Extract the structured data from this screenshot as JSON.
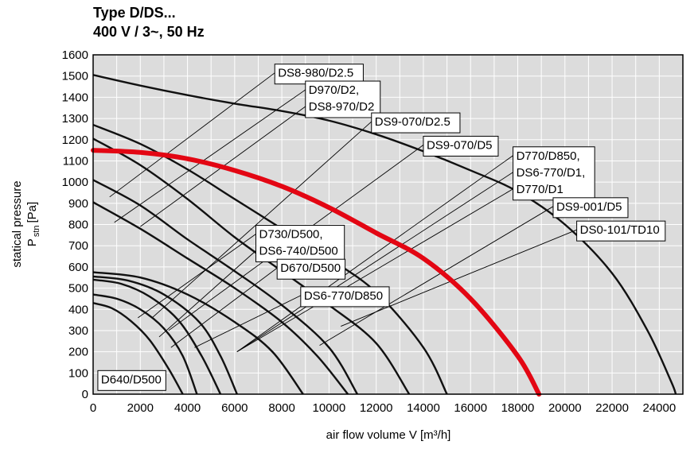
{
  "chart_data": {
    "type": "line",
    "title": "Type D/DS...",
    "subtitle": "400 V / 3~, 50 Hz",
    "xlabel": "air flow volume V [m³/h]",
    "ylabel": "statical pressure",
    "ylabel_symbol": "P",
    "ylabel_subscript": "stn",
    "ylabel_unit": "[Pa]",
    "xlim": [
      0,
      25000
    ],
    "ylim": [
      0,
      1600
    ],
    "x_ticks": [
      "0",
      "2000",
      "4000",
      "6000",
      "8000",
      "10000",
      "12000",
      "14000",
      "16000",
      "18000",
      "20000",
      "22000",
      "24000"
    ],
    "y_ticks": [
      "0",
      "100",
      "200",
      "300",
      "400",
      "500",
      "600",
      "700",
      "800",
      "900",
      "1000",
      "1100",
      "1200",
      "1300",
      "1400",
      "1500",
      "1600"
    ],
    "grid": true,
    "colors": {
      "highlight": "#e30613",
      "curve": "#111111",
      "plot_bg": "#dcdcdc",
      "grid": "#ffffff"
    },
    "series": [
      {
        "name": "D640/D500",
        "points": [
          [
            0,
            430
          ],
          [
            800,
            405
          ],
          [
            1600,
            345
          ],
          [
            2400,
            255
          ],
          [
            3200,
            120
          ],
          [
            3800,
            0
          ]
        ]
      },
      {
        "name": "DS6-770/D850",
        "points": [
          [
            0,
            470
          ],
          [
            1000,
            450
          ],
          [
            2000,
            400
          ],
          [
            3000,
            310
          ],
          [
            3800,
            180
          ],
          [
            4400,
            0
          ]
        ]
      },
      {
        "name": "D670/D500",
        "points": [
          [
            0,
            540
          ],
          [
            1200,
            520
          ],
          [
            2400,
            460
          ],
          [
            3600,
            350
          ],
          [
            4600,
            180
          ],
          [
            5400,
            0
          ]
        ]
      },
      {
        "name": "DS6-740/D500",
        "points": [
          [
            0,
            555
          ],
          [
            1500,
            535
          ],
          [
            3000,
            470
          ],
          [
            4500,
            340
          ],
          [
            5400,
            180
          ],
          [
            6100,
            0
          ]
        ]
      },
      {
        "name": "D730/D500",
        "points": [
          [
            0,
            575
          ],
          [
            2000,
            550
          ],
          [
            4000,
            470
          ],
          [
            6000,
            340
          ],
          [
            7600,
            200
          ],
          [
            8900,
            0
          ]
        ]
      },
      {
        "name": "D770/D1",
        "points": [
          [
            0,
            905
          ],
          [
            2000,
            780
          ],
          [
            4000,
            640
          ],
          [
            6000,
            500
          ],
          [
            8000,
            340
          ],
          [
            9500,
            180
          ],
          [
            10800,
            0
          ]
        ]
      },
      {
        "name": "D770/D850",
        "points": [
          [
            0,
            1010
          ],
          [
            2000,
            890
          ],
          [
            4000,
            730
          ],
          [
            6000,
            580
          ],
          [
            8000,
            420
          ],
          [
            10000,
            220
          ],
          [
            11200,
            0
          ]
        ]
      },
      {
        "name": "DS6-770/D1",
        "points": [
          [
            0,
            1205
          ],
          [
            2000,
            1080
          ],
          [
            4000,
            920
          ],
          [
            6000,
            740
          ],
          [
            8000,
            580
          ],
          [
            10000,
            420
          ],
          [
            12000,
            240
          ],
          [
            13400,
            0
          ]
        ]
      },
      {
        "name": "DS8-970/D2",
        "points": [
          [
            0,
            1270
          ],
          [
            2000,
            1180
          ],
          [
            4000,
            1060
          ],
          [
            6000,
            920
          ],
          [
            8000,
            780
          ],
          [
            10000,
            640
          ],
          [
            12000,
            480
          ],
          [
            14000,
            220
          ],
          [
            15000,
            0
          ]
        ]
      },
      {
        "name": "D970/D2",
        "points": [
          [
            0,
            1150
          ],
          [
            2000,
            1140
          ],
          [
            4000,
            1110
          ],
          [
            6000,
            1055
          ],
          [
            8000,
            980
          ],
          [
            10000,
            880
          ],
          [
            12000,
            760
          ],
          [
            14000,
            640
          ],
          [
            16000,
            450
          ],
          [
            18000,
            180
          ],
          [
            18900,
            0
          ]
        ],
        "highlight": true
      },
      {
        "name": "DS8-980/D2.5",
        "points": [
          [
            0,
            1505
          ],
          [
            2000,
            1455
          ],
          [
            4000,
            1410
          ],
          [
            6000,
            1370
          ],
          [
            8000,
            1335
          ],
          [
            10000,
            1290
          ],
          [
            12000,
            1225
          ],
          [
            14000,
            1145
          ],
          [
            16000,
            1055
          ],
          [
            18000,
            955
          ],
          [
            20000,
            800
          ],
          [
            22000,
            570
          ],
          [
            23500,
            300
          ],
          [
            24500,
            60
          ],
          [
            24700,
            0
          ]
        ]
      }
    ],
    "labels": [
      {
        "text": "DS8-980/D2.5",
        "anchor": [
          7700,
          1500
        ],
        "line_to": [
          700,
          930
        ]
      },
      {
        "text": "D970/D2,",
        "anchor": [
          9000,
          1420
        ],
        "line_to": [
          900,
          810
        ]
      },
      {
        "text": "DS8-970/D2",
        "anchor": [
          9000,
          1330
        ],
        "line_to": [
          2000,
          790
        ]
      },
      {
        "text": "DS9-070/D2.5",
        "anchor": [
          11800,
          1270
        ],
        "line_to": [
          2500,
          360
        ]
      },
      {
        "text": "DS9-070/D5",
        "anchor": [
          14000,
          1160
        ],
        "line_to": [
          3200,
          300
        ]
      },
      {
        "text": "D770/D850,",
        "anchor": [
          17800,
          1110
        ],
        "line_to": [
          6100,
          200
        ]
      },
      {
        "text": "DS6-770/D1,",
        "anchor": [
          17800,
          1030
        ],
        "line_to": [
          6100,
          200
        ]
      },
      {
        "text": "D770/D1",
        "anchor": [
          17800,
          950
        ],
        "line_to": [
          6100,
          200
        ]
      },
      {
        "text": "DS9-001/D5",
        "anchor": [
          19500,
          870
        ],
        "line_to": [
          9600,
          230
        ]
      },
      {
        "text": "DS0-101/TD10",
        "anchor": [
          20500,
          760
        ],
        "line_to": [
          10500,
          320
        ]
      },
      {
        "text": "D730/D500,",
        "anchor": [
          6900,
          740
        ],
        "line_to": [
          1900,
          360
        ]
      },
      {
        "text": "DS6-740/D500",
        "anchor": [
          6900,
          665
        ],
        "line_to": [
          2800,
          270
        ]
      },
      {
        "text": "D670/D500",
        "anchor": [
          7800,
          580
        ],
        "line_to": [
          3300,
          220
        ]
      },
      {
        "text": "DS6-770/D850",
        "anchor": [
          8800,
          450
        ],
        "line_to": [
          4300,
          220
        ]
      },
      {
        "text": "D640/D500",
        "anchor": [
          200,
          55
        ],
        "line_to": null
      }
    ]
  }
}
